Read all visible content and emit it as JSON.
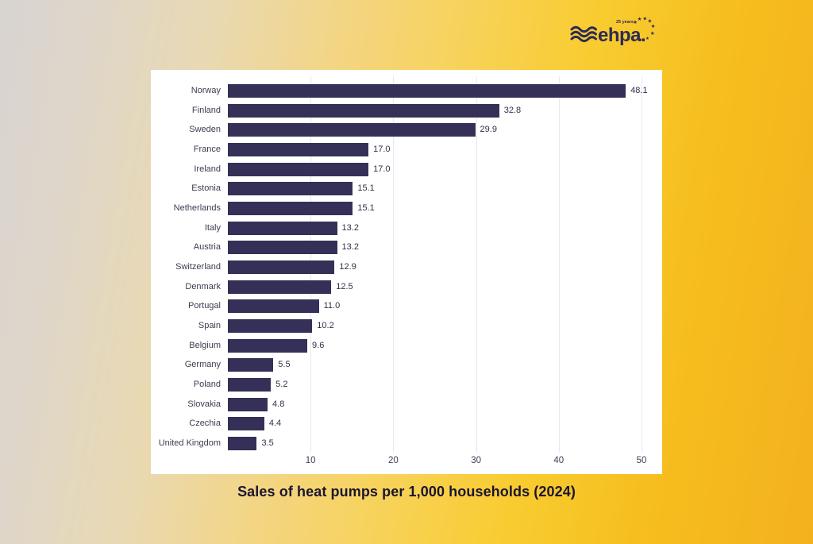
{
  "logo": {
    "brand": "ehpa.",
    "tagline": "25 years",
    "color": "#2d2a56"
  },
  "caption": "Sales of heat pumps per 1,000 households (2024)",
  "chart_data": {
    "type": "bar",
    "orientation": "horizontal",
    "title": "Sales of heat pumps per 1,000 households (2024)",
    "categories": [
      "Norway",
      "Finland",
      "Sweden",
      "France",
      "Ireland",
      "Estonia",
      "Netherlands",
      "Italy",
      "Austria",
      "Switzerland",
      "Denmark",
      "Portugal",
      "Spain",
      "Belgium",
      "Germany",
      "Poland",
      "Slovakia",
      "Czechia",
      "United Kingdom"
    ],
    "values": [
      48.1,
      32.8,
      29.9,
      17.0,
      17.0,
      15.1,
      15.1,
      13.2,
      13.2,
      12.9,
      12.5,
      11.0,
      10.2,
      9.6,
      5.5,
      5.2,
      4.8,
      4.4,
      3.5
    ],
    "xlabel": "",
    "ylabel": "",
    "xticks": [
      10,
      20,
      30,
      40,
      50
    ],
    "xlim": [
      0,
      52
    ],
    "grid": true,
    "legend": false,
    "bar_color": "#353057",
    "gridline_color": "#e8e8f0",
    "background": "#ffffff"
  }
}
